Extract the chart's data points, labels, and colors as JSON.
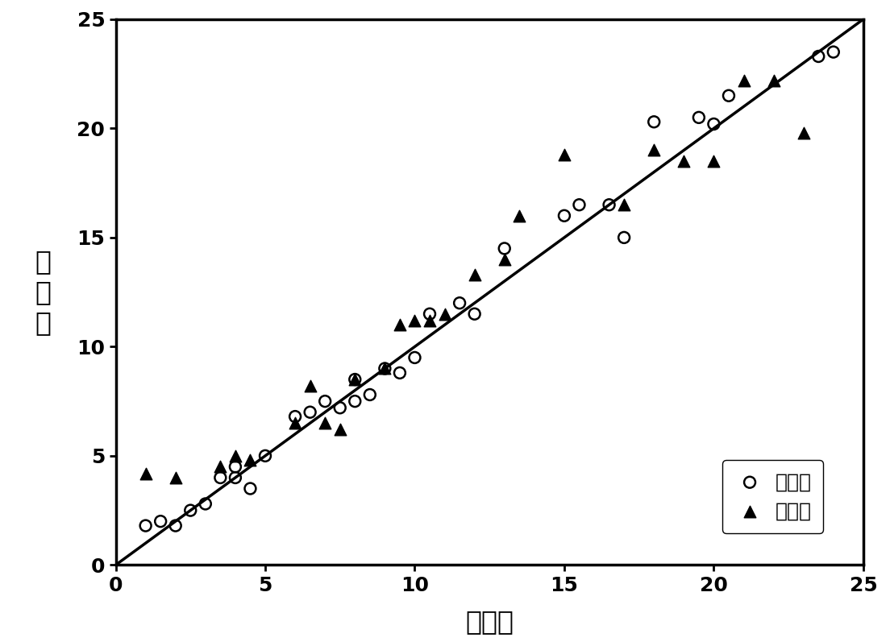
{
  "calib_x": [
    1.0,
    1.5,
    2.0,
    2.5,
    3.0,
    3.5,
    4.0,
    4.0,
    4.5,
    5.0,
    6.0,
    6.5,
    7.0,
    7.5,
    8.0,
    8.0,
    8.5,
    9.0,
    9.5,
    10.0,
    10.5,
    11.5,
    12.0,
    13.0,
    15.0,
    15.5,
    16.5,
    17.0,
    18.0,
    19.5,
    20.0,
    20.5,
    23.5,
    24.0
  ],
  "calib_y": [
    1.8,
    2.0,
    1.8,
    2.5,
    2.8,
    4.0,
    4.0,
    4.5,
    3.5,
    5.0,
    6.8,
    7.0,
    7.5,
    7.2,
    7.5,
    8.5,
    7.8,
    9.0,
    8.8,
    9.5,
    11.5,
    12.0,
    11.5,
    14.5,
    16.0,
    16.5,
    16.5,
    15.0,
    20.3,
    20.5,
    20.2,
    21.5,
    23.3,
    23.5
  ],
  "valid_x": [
    1.0,
    2.0,
    3.5,
    4.0,
    4.5,
    6.0,
    6.5,
    7.0,
    7.5,
    8.0,
    9.0,
    9.5,
    10.0,
    10.5,
    11.0,
    12.0,
    13.0,
    13.5,
    15.0,
    17.0,
    18.0,
    19.0,
    20.0,
    21.0,
    22.0,
    23.0
  ],
  "valid_y": [
    4.2,
    4.0,
    4.5,
    5.0,
    4.8,
    6.5,
    8.2,
    6.5,
    6.2,
    8.5,
    9.0,
    11.0,
    11.2,
    11.2,
    11.5,
    13.3,
    14.0,
    16.0,
    18.8,
    16.5,
    19.0,
    18.5,
    18.5,
    22.2,
    22.2,
    19.8
  ],
  "line_x": [
    0,
    25
  ],
  "line_y": [
    0,
    25
  ],
  "xlabel": "真实値",
  "ylabel_chars": [
    "预",
    "测",
    "値"
  ],
  "ylabel_top": "预",
  "ylabel_mid": "测",
  "ylabel_bot": "値",
  "legend_calib": "矫正集",
  "legend_valid": "验证集",
  "xlim": [
    0,
    25
  ],
  "ylim": [
    0,
    25
  ],
  "xticks": [
    0,
    5,
    10,
    15,
    20,
    25
  ],
  "yticks": [
    0,
    5,
    10,
    15,
    20,
    25
  ],
  "line_color": "#000000",
  "calib_color": "#000000",
  "valid_color": "#000000",
  "background_color": "#ffffff",
  "xlabel_fontsize": 24,
  "ylabel_fontsize": 24,
  "tick_fontsize": 18,
  "legend_fontsize": 18,
  "marker_size_calib": 100,
  "marker_size_valid": 110
}
